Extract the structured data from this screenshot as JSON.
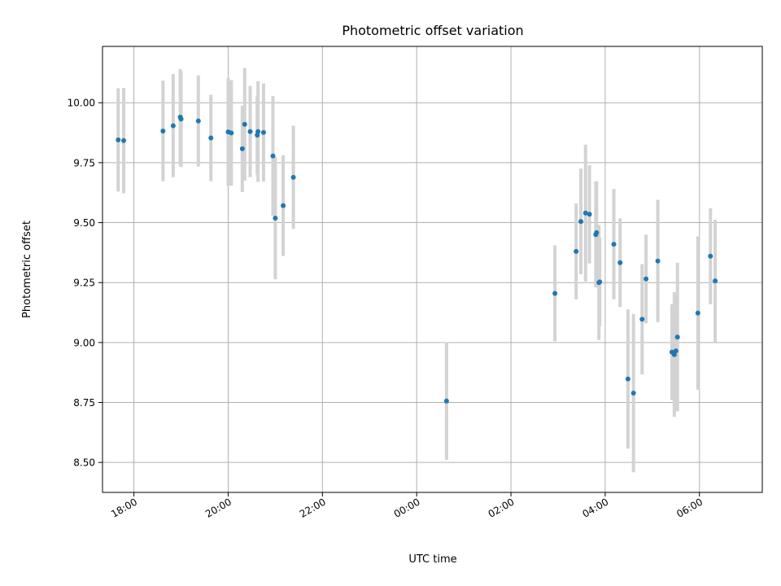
{
  "chart_data": {
    "type": "scatter",
    "title": "Photometric offset variation",
    "xlabel": "UTC time",
    "ylabel": "Photometric offset",
    "grid": true,
    "xlim": [
      "17:20",
      "07:20 +1d"
    ],
    "ylim": [
      8.375,
      10.235
    ],
    "xticks": [
      "18:00",
      "20:00",
      "22:00",
      "00:00",
      "02:00",
      "04:00",
      "06:00"
    ],
    "yticks": [
      "8.50",
      "8.75",
      "9.00",
      "9.25",
      "9.50",
      "9.75",
      "10.00"
    ],
    "colors": {
      "points": "#1f77b4",
      "errorbars": "#d3d3d3",
      "grid": "#b0b0b0"
    },
    "series": [
      {
        "points": [
          {
            "t": "17:40",
            "y": 9.845,
            "err": 0.215
          },
          {
            "t": "17:47",
            "y": 9.842,
            "err": 0.22
          },
          {
            "t": "18:37",
            "y": 9.882,
            "err": 0.21
          },
          {
            "t": "18:50",
            "y": 9.904,
            "err": 0.215
          },
          {
            "t": "18:59",
            "y": 9.94,
            "err": 0.2
          },
          {
            "t": "19:00",
            "y": 9.932,
            "err": 0.2
          },
          {
            "t": "19:22",
            "y": 9.924,
            "err": 0.19
          },
          {
            "t": "19:38",
            "y": 9.853,
            "err": 0.18
          },
          {
            "t": "20:00",
            "y": 9.878,
            "err": 0.225
          },
          {
            "t": "20:04",
            "y": 9.874,
            "err": 0.22
          },
          {
            "t": "20:18",
            "y": 9.808,
            "err": 0.18
          },
          {
            "t": "20:21",
            "y": 9.91,
            "err": 0.235
          },
          {
            "t": "20:28",
            "y": 9.88,
            "err": 0.19
          },
          {
            "t": "20:37",
            "y": 9.865,
            "err": 0.165
          },
          {
            "t": "20:38",
            "y": 9.88,
            "err": 0.21
          },
          {
            "t": "20:45",
            "y": 9.876,
            "err": 0.205
          },
          {
            "t": "20:57",
            "y": 9.778,
            "err": 0.25
          },
          {
            "t": "21:00",
            "y": 9.519,
            "err": 0.255
          },
          {
            "t": "21:10",
            "y": 9.571,
            "err": 0.21
          },
          {
            "t": "21:23",
            "y": 9.689,
            "err": 0.215
          },
          {
            "t": "00:38 +1d",
            "y": 8.756,
            "err": 0.245
          },
          {
            "t": "02:56 +1d",
            "y": 9.205,
            "err": 0.2
          },
          {
            "t": "03:23 +1d",
            "y": 9.38,
            "err": 0.2
          },
          {
            "t": "03:29 +1d",
            "y": 9.505,
            "err": 0.22
          },
          {
            "t": "03:35 +1d",
            "y": 9.54,
            "err": 0.285
          },
          {
            "t": "03:40 +1d",
            "y": 9.535,
            "err": 0.205
          },
          {
            "t": "03:48 +1d",
            "y": 9.45,
            "err": 0.22
          },
          {
            "t": "03:49 +1d",
            "y": 9.458,
            "err": 0.215
          },
          {
            "t": "03:52 +1d",
            "y": 9.25,
            "err": 0.24
          },
          {
            "t": "03:53 +1d",
            "y": 9.253,
            "err": 0.185
          },
          {
            "t": "04:11 +1d",
            "y": 9.41,
            "err": 0.23
          },
          {
            "t": "04:19 +1d",
            "y": 9.333,
            "err": 0.185
          },
          {
            "t": "04:29 +1d",
            "y": 8.848,
            "err": 0.29
          },
          {
            "t": "04:36 +1d",
            "y": 8.789,
            "err": 0.33
          },
          {
            "t": "04:47 +1d",
            "y": 9.097,
            "err": 0.23
          },
          {
            "t": "04:52 +1d",
            "y": 9.265,
            "err": 0.185
          },
          {
            "t": "05:07 +1d",
            "y": 9.34,
            "err": 0.255
          },
          {
            "t": "05:25 +1d",
            "y": 8.96,
            "err": 0.2
          },
          {
            "t": "05:28 +1d",
            "y": 8.95,
            "err": 0.26
          },
          {
            "t": "05:30 +1d",
            "y": 8.965,
            "err": 0.23
          },
          {
            "t": "05:32 +1d",
            "y": 9.023,
            "err": 0.31
          },
          {
            "t": "05:58 +1d",
            "y": 9.123,
            "err": 0.32
          },
          {
            "t": "06:14 +1d",
            "y": 9.36,
            "err": 0.2
          },
          {
            "t": "06:20 +1d",
            "y": 9.257,
            "err": 0.255
          }
        ]
      }
    ]
  }
}
